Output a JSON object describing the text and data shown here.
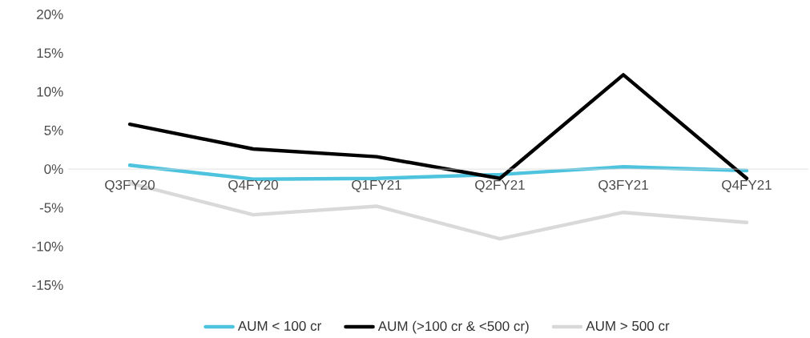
{
  "chart_data": {
    "type": "line",
    "categories": [
      "Q3FY20",
      "Q4FY20",
      "Q1FY21",
      "Q2FY21",
      "Q3FY21",
      "Q4FY21"
    ],
    "series": [
      {
        "name": "AUM < 100 cr",
        "color": "#4dc3de",
        "values": [
          0.5,
          -1.3,
          -1.2,
          -0.7,
          0.3,
          -0.2
        ]
      },
      {
        "name": "AUM (>100 cr & <500 cr)",
        "color": "#000000",
        "values": [
          5.8,
          2.6,
          1.6,
          -1.2,
          12.2,
          -1.2
        ]
      },
      {
        "name": "AUM > 500 cr",
        "color": "#d9d9d9",
        "values": [
          -1.8,
          -5.9,
          -4.8,
          -9.0,
          -5.6,
          -6.9
        ]
      }
    ],
    "ylim": [
      -15,
      20
    ],
    "yticks": [
      {
        "value": -15,
        "label": "-15%"
      },
      {
        "value": -10,
        "label": "-10%"
      },
      {
        "value": -5,
        "label": "-5%"
      },
      {
        "value": 0,
        "label": "0%"
      },
      {
        "value": 5,
        "label": "5%"
      },
      {
        "value": 10,
        "label": "10%"
      },
      {
        "value": 15,
        "label": "15%"
      },
      {
        "value": 20,
        "label": "20%"
      }
    ],
    "legend": "bottom",
    "marker": "none",
    "line_style": "solid",
    "grid": false
  }
}
